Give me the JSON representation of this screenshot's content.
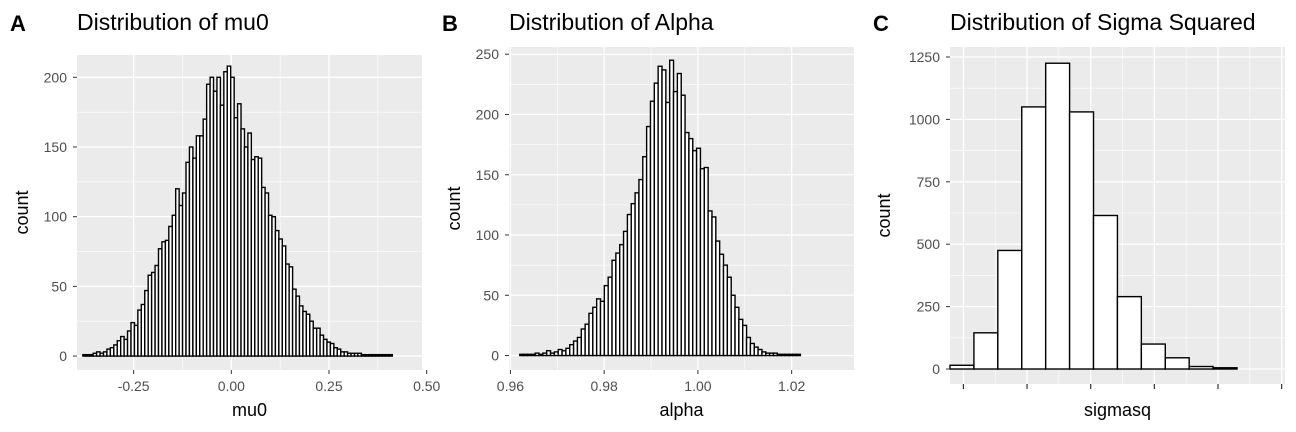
{
  "chart_data": [
    {
      "type": "bar",
      "tag": "A",
      "title": "Distribution of mu0",
      "xlabel": "mu0",
      "ylabel": "count",
      "xlim": [
        -0.395,
        0.488
      ],
      "ylim": [
        -10,
        216
      ],
      "xticks": [
        -0.25,
        0.0,
        0.25,
        0.5
      ],
      "xtick_labels": [
        "-0.25",
        "0.00",
        "0.25",
        "0.50"
      ],
      "yticks": [
        0,
        50,
        100,
        150,
        200
      ],
      "ytick_labels": [
        "0",
        "50",
        "100",
        "150",
        "200"
      ],
      "bin_start": -0.38,
      "bin_width": 0.0088,
      "counts": [
        1,
        1,
        1,
        2,
        3,
        2,
        3,
        5,
        6,
        8,
        11,
        14,
        12,
        18,
        24,
        22,
        33,
        37,
        47,
        58,
        60,
        65,
        77,
        82,
        83,
        93,
        101,
        120,
        108,
        117,
        139,
        150,
        142,
        158,
        158,
        170,
        195,
        200,
        190,
        200,
        180,
        204,
        208,
        200,
        171,
        181,
        163,
        150,
        160,
        141,
        143,
        142,
        121,
        117,
        101,
        100,
        90,
        84,
        79,
        66,
        64,
        48,
        43,
        36,
        32,
        30,
        25,
        20,
        20,
        15,
        12,
        10,
        9,
        6,
        5,
        3,
        3,
        2,
        2,
        2,
        2,
        1,
        1,
        1,
        1,
        1,
        1,
        1,
        1,
        1
      ],
      "grid": true,
      "bar_fill": "#ffffff",
      "bar_stroke": "#000000",
      "panel_background": "#ebebeb"
    },
    {
      "type": "bar",
      "tag": "B",
      "title": "Distribution of Alpha",
      "xlabel": "alpha",
      "ylabel": "count",
      "xlim": [
        0.9597,
        1.0333
      ],
      "ylim": [
        -12,
        256
      ],
      "xticks": [
        0.96,
        0.98,
        1.0,
        1.02
      ],
      "xtick_labels": [
        "0.96",
        "0.98",
        "1.00",
        "1.02"
      ],
      "yticks": [
        0,
        50,
        100,
        150,
        200,
        250
      ],
      "ytick_labels": [
        "0",
        "50",
        "100",
        "150",
        "200",
        "250"
      ],
      "bin_start": 0.962,
      "bin_width": 0.00082,
      "counts": [
        1,
        1,
        1,
        1,
        2,
        1,
        2,
        4,
        2,
        3,
        5,
        4,
        6,
        9,
        12,
        15,
        22,
        26,
        35,
        40,
        47,
        45,
        58,
        65,
        79,
        85,
        92,
        103,
        117,
        126,
        135,
        146,
        165,
        190,
        211,
        226,
        240,
        237,
        210,
        245,
        219,
        234,
        216,
        185,
        180,
        170,
        172,
        155,
        156,
        120,
        115,
        95,
        84,
        75,
        65,
        50,
        40,
        30,
        25,
        15,
        10,
        7,
        5,
        3,
        2,
        2,
        2,
        1,
        1,
        1,
        1,
        1,
        1
      ],
      "grid": true,
      "bar_fill": "#ffffff",
      "bar_stroke": "#000000",
      "panel_background": "#ebebeb"
    },
    {
      "type": "bar",
      "tag": "C",
      "title": "Distribution of Sigma Squared",
      "xlabel": "sigmasq",
      "ylabel": "count",
      "xlim": [
        0.0,
        1.0
      ],
      "ylim": [
        -60,
        1290
      ],
      "xticks": [],
      "xtick_labels": [],
      "yticks": [
        0,
        250,
        500,
        750,
        1000,
        1250
      ],
      "ytick_labels": [
        "0",
        "250",
        "500",
        "750",
        "1000",
        "1250"
      ],
      "bin_start": 0.0,
      "bin_width": 0.0714,
      "counts": [
        15,
        145,
        475,
        1050,
        1225,
        1030,
        615,
        290,
        100,
        45,
        10,
        5
      ],
      "grid": true,
      "bar_fill": "#ffffff",
      "bar_stroke": "#000000",
      "panel_background": "#ebebeb"
    }
  ]
}
